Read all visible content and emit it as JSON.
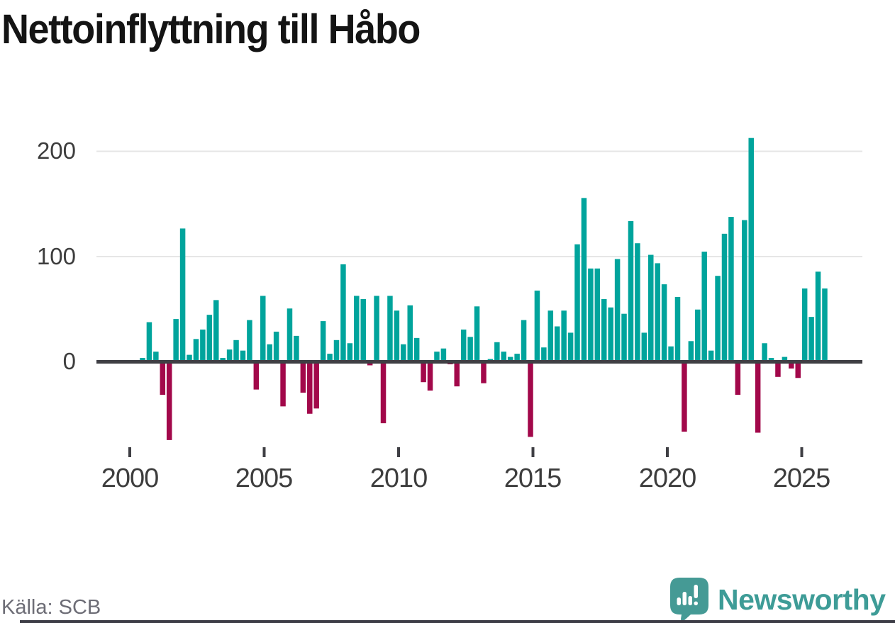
{
  "title": "Nettoinflyttning till Håbo",
  "source": "Källa: SCB",
  "brand": {
    "name": "Newsworthy",
    "icon": "speech-bubble-bar-chart-exclamation",
    "color_icon": "#459a95",
    "color_text": "#3e9c97"
  },
  "chart_data": {
    "type": "bar",
    "title": "Nettoinflyttning till Håbo",
    "frequency": "quarterly",
    "start_period": "2000 Q2",
    "end_period": "2025 Q4",
    "values": [
      4,
      38,
      10,
      -31,
      -74,
      41,
      127,
      7,
      22,
      31,
      45,
      59,
      4,
      12,
      21,
      11,
      40,
      -26,
      63,
      17,
      29,
      -42,
      51,
      25,
      -29,
      -49,
      -44,
      39,
      8,
      21,
      93,
      18,
      63,
      60,
      -3,
      63,
      -58,
      63,
      49,
      17,
      54,
      23,
      -19,
      -27,
      10,
      13,
      -2,
      -23,
      31,
      24,
      53,
      -20,
      3,
      19,
      10,
      5,
      8,
      40,
      -71,
      68,
      14,
      49,
      34,
      49,
      28,
      112,
      156,
      89,
      89,
      60,
      52,
      98,
      46,
      134,
      113,
      28,
      102,
      94,
      74,
      15,
      62,
      -66,
      20,
      50,
      105,
      11,
      82,
      122,
      138,
      -31,
      135,
      213,
      -67,
      18,
      4,
      -14,
      5,
      -6,
      -15,
      70,
      43,
      86,
      70
    ],
    "y_axis": {
      "tick_labels": [
        "0",
        "100",
        "200"
      ],
      "ticks": [
        0,
        100,
        200
      ],
      "shown_range": [
        -80,
        225
      ],
      "grid": "horizontal"
    },
    "x_axis": {
      "tick_labels": [
        "2000",
        "2005",
        "2010",
        "2015",
        "2020",
        "2025"
      ]
    },
    "colors": {
      "positive": "#00a49c",
      "negative": "#a2084a",
      "axis": "#3f3f44",
      "gridline": "#e6e6e6"
    },
    "legend": "none"
  }
}
